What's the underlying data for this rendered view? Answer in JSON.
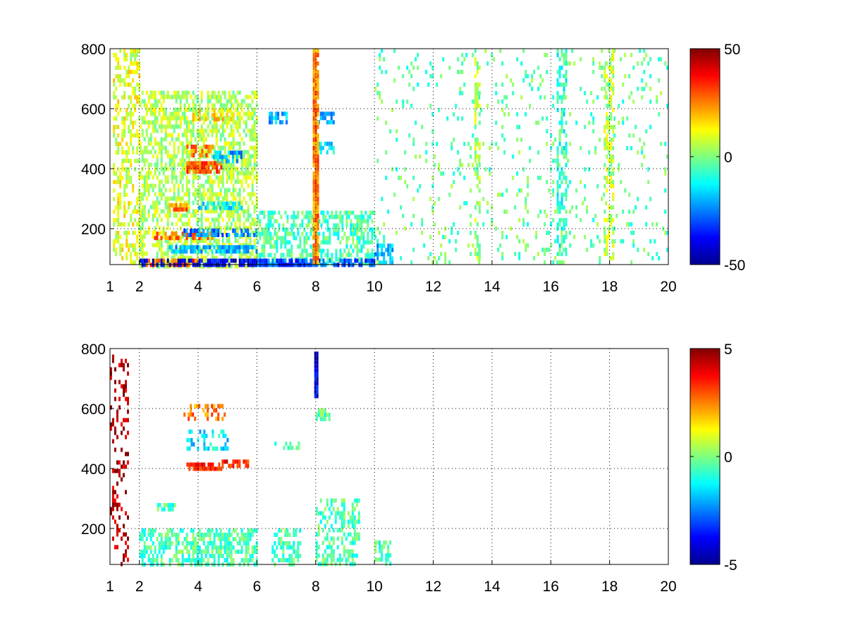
{
  "figure": {
    "background": "#ffffff",
    "colormap": "jet",
    "colormap_stops": [
      "#00008f",
      "#0000ff",
      "#00ffff",
      "#7fff7f",
      "#ffff00",
      "#ff0000",
      "#800000"
    ]
  },
  "chart_data": [
    {
      "type": "heatmap",
      "title": "",
      "xlabel": "",
      "ylabel": "",
      "xlim": [
        1,
        20
      ],
      "ylim": [
        80,
        800
      ],
      "x_ticks": [
        1,
        2,
        4,
        6,
        8,
        10,
        12,
        14,
        16,
        18,
        20
      ],
      "x_tick_labels": [
        "1",
        "2",
        "4",
        "6",
        "8",
        "10",
        "12",
        "14",
        "16",
        "18",
        "20"
      ],
      "y_ticks": [
        200,
        400,
        600,
        800
      ],
      "y_tick_labels": [
        "200",
        "400",
        "600",
        "800"
      ],
      "grid": true,
      "colorbar": {
        "range": [
          -50,
          50
        ],
        "ticks": [
          -50,
          0,
          50
        ],
        "tick_labels": [
          "-50",
          "0",
          "50"
        ]
      },
      "features": [
        {
          "x": [
            1.1,
            2.0
          ],
          "y": [
            80,
            800
          ],
          "value": 10,
          "density": 0.45
        },
        {
          "x": [
            2.0,
            6.0
          ],
          "y": [
            80,
            660
          ],
          "value": 5,
          "density": 0.55
        },
        {
          "x": [
            2.0,
            6.0
          ],
          "y": [
            80,
            100
          ],
          "value": -40,
          "density": 0.8
        },
        {
          "x": [
            2.0,
            4.0
          ],
          "y": [
            80,
            100
          ],
          "value": 30,
          "density": 0.5
        },
        {
          "x": [
            3.0,
            6.0
          ],
          "y": [
            120,
            145
          ],
          "value": -20,
          "density": 0.7
        },
        {
          "x": [
            2.5,
            4.5
          ],
          "y": [
            170,
            190
          ],
          "value": 25,
          "density": 0.7
        },
        {
          "x": [
            3.5,
            6.0
          ],
          "y": [
            180,
            200
          ],
          "value": -25,
          "density": 0.6
        },
        {
          "x": [
            3.0,
            3.6
          ],
          "y": [
            270,
            285
          ],
          "value": 25,
          "density": 0.8
        },
        {
          "x": [
            4.0,
            5.5
          ],
          "y": [
            270,
            290
          ],
          "value": -15,
          "density": 0.6
        },
        {
          "x": [
            3.6,
            4.8
          ],
          "y": [
            395,
            425
          ],
          "value": 30,
          "density": 0.9
        },
        {
          "x": [
            4.5,
            5.5
          ],
          "y": [
            420,
            460
          ],
          "value": -20,
          "density": 0.6
        },
        {
          "x": [
            3.6,
            4.5
          ],
          "y": [
            450,
            480
          ],
          "value": 25,
          "density": 0.6
        },
        {
          "x": [
            3.8,
            5.2
          ],
          "y": [
            560,
            600
          ],
          "value": 15,
          "density": 0.5
        },
        {
          "x": [
            6.0,
            10.0
          ],
          "y": [
            80,
            260
          ],
          "value": -5,
          "density": 0.55
        },
        {
          "x": [
            6.0,
            10.0
          ],
          "y": [
            80,
            100
          ],
          "value": -30,
          "density": 0.7
        },
        {
          "x": [
            6.4,
            7.0
          ],
          "y": [
            560,
            590
          ],
          "value": -20,
          "density": 0.7
        },
        {
          "x": [
            8.0,
            8.6
          ],
          "y": [
            560,
            590
          ],
          "value": -20,
          "density": 0.7
        },
        {
          "x": [
            8.0,
            8.6
          ],
          "y": [
            460,
            490
          ],
          "value": -15,
          "density": 0.6
        },
        {
          "x": [
            7.9,
            8.1
          ],
          "y": [
            80,
            800
          ],
          "value": 25,
          "density": 0.95
        },
        {
          "x": [
            10.0,
            10.6
          ],
          "y": [
            80,
            150
          ],
          "value": -20,
          "density": 0.7
        },
        {
          "x": [
            10.0,
            20.0
          ],
          "y": [
            80,
            800
          ],
          "value": -3,
          "density": 0.08
        },
        {
          "x": [
            13.4,
            13.6
          ],
          "y": [
            80,
            800
          ],
          "value": 4,
          "density": 0.5
        },
        {
          "x": [
            16.2,
            16.5
          ],
          "y": [
            80,
            800
          ],
          "value": -8,
          "density": 0.5
        },
        {
          "x": [
            17.8,
            18.1
          ],
          "y": [
            80,
            800
          ],
          "value": 6,
          "density": 0.5
        }
      ]
    },
    {
      "type": "heatmap",
      "title": "",
      "xlabel": "",
      "ylabel": "",
      "xlim": [
        1,
        20
      ],
      "ylim": [
        80,
        800
      ],
      "x_ticks": [
        1,
        2,
        4,
        6,
        8,
        10,
        12,
        14,
        16,
        18,
        20
      ],
      "x_tick_labels": [
        "1",
        "2",
        "4",
        "6",
        "8",
        "10",
        "12",
        "14",
        "16",
        "18",
        "20"
      ],
      "y_ticks": [
        200,
        400,
        600,
        800
      ],
      "y_tick_labels": [
        "200",
        "400",
        "600",
        "800"
      ],
      "grid": true,
      "colorbar": {
        "range": [
          -5,
          5
        ],
        "ticks": [
          -5,
          0,
          5
        ],
        "tick_labels": [
          "-5",
          "0",
          "5"
        ]
      },
      "features": [
        {
          "x": [
            1.0,
            1.6
          ],
          "y": [
            80,
            780
          ],
          "value": 4.5,
          "density": 0.25
        },
        {
          "x": [
            2.0,
            6.0
          ],
          "y": [
            80,
            200
          ],
          "value": -0.5,
          "density": 0.6
        },
        {
          "x": [
            6.5,
            7.5
          ],
          "y": [
            80,
            200
          ],
          "value": -0.5,
          "density": 0.5
        },
        {
          "x": [
            8.0,
            9.5
          ],
          "y": [
            80,
            300
          ],
          "value": -0.5,
          "density": 0.45
        },
        {
          "x": [
            10.0,
            10.6
          ],
          "y": [
            80,
            160
          ],
          "value": -0.5,
          "density": 0.5
        },
        {
          "x": [
            3.6,
            4.8
          ],
          "y": [
            395,
            420
          ],
          "value": 3.5,
          "density": 0.9
        },
        {
          "x": [
            4.8,
            5.8
          ],
          "y": [
            415,
            430
          ],
          "value": 3.5,
          "density": 0.5
        },
        {
          "x": [
            3.5,
            4.9
          ],
          "y": [
            560,
            615
          ],
          "value": 2.5,
          "density": 0.45
        },
        {
          "x": [
            3.6,
            5.0
          ],
          "y": [
            460,
            530
          ],
          "value": -1.5,
          "density": 0.35
        },
        {
          "x": [
            2.6,
            3.2
          ],
          "y": [
            270,
            285
          ],
          "value": -0.5,
          "density": 0.6
        },
        {
          "x": [
            7.95,
            8.05
          ],
          "y": [
            640,
            790
          ],
          "value": -4,
          "density": 1.0
        },
        {
          "x": [
            6.6,
            7.4
          ],
          "y": [
            470,
            490
          ],
          "value": -0.5,
          "density": 0.4
        },
        {
          "x": [
            8.0,
            8.5
          ],
          "y": [
            560,
            600
          ],
          "value": -0.5,
          "density": 0.5
        }
      ]
    }
  ]
}
